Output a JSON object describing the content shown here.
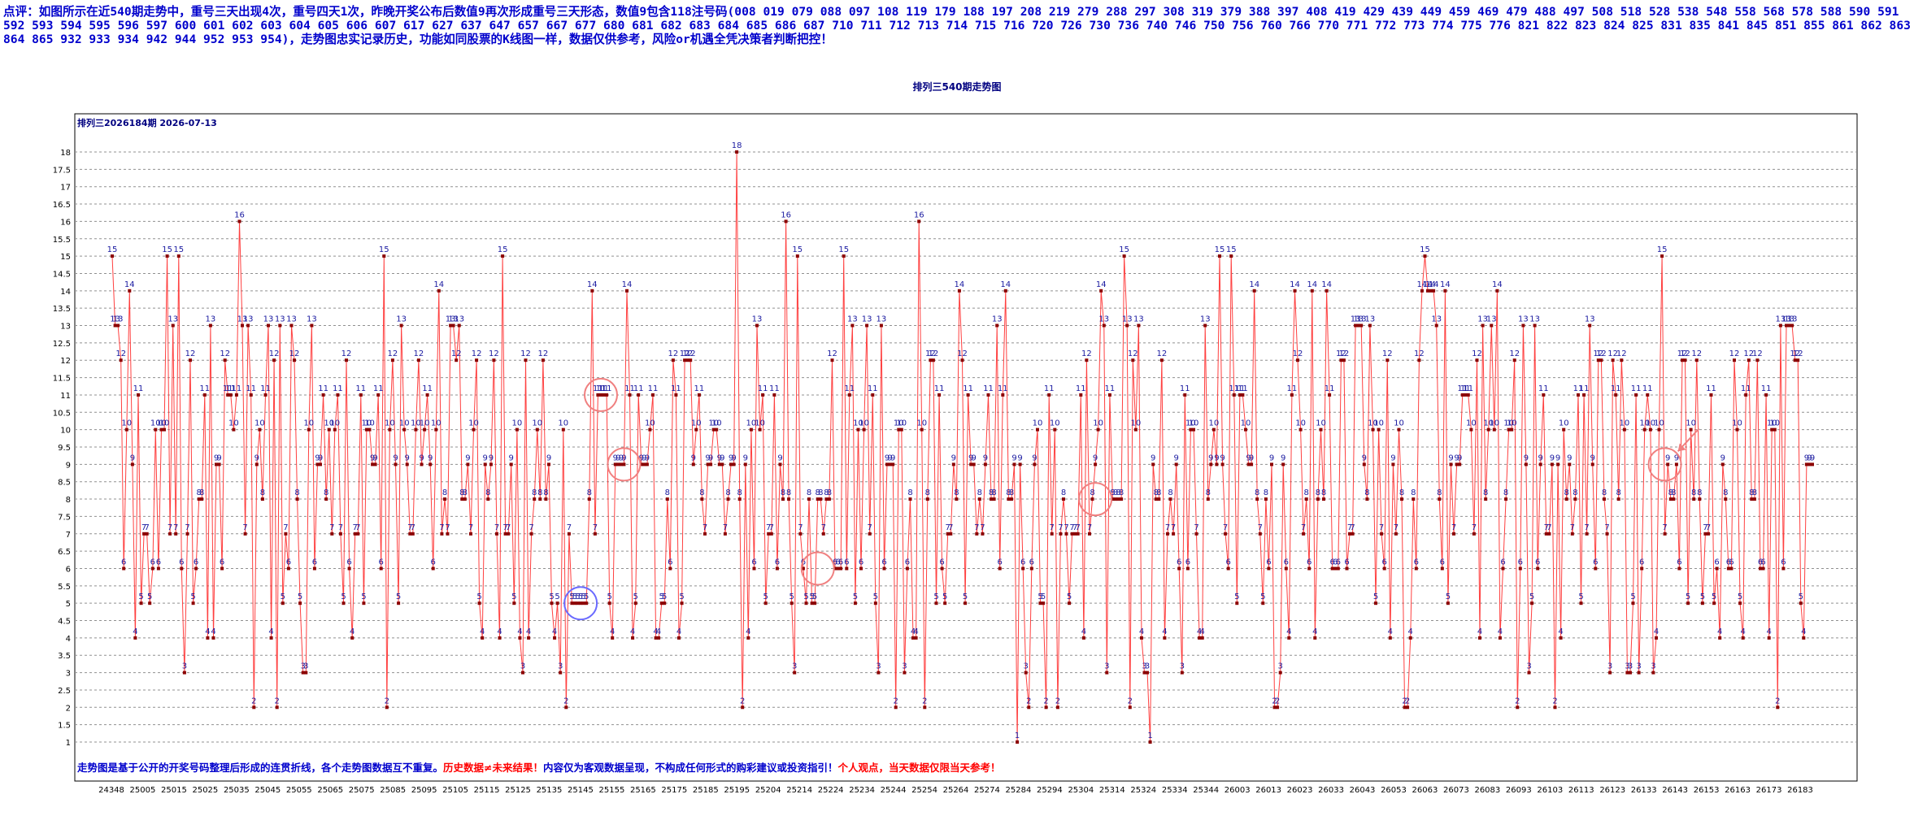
{
  "comment": "点评：如图所示在近540期走势中，重号三天出现4次，重号四天1次，昨晚开奖公布后数值9再次形成重号三天形态，数值9包含118注号码(008 019 079 088 097 108 119 179 188 197 208 219 279 288 297 308 319 379 388 397 408 419 429 439 449 459 469 479 488 497 508 518 528 538 548 558 568 578 588 590 591 592 593 594 595 596 597 600 601 602 603 604 605 606 607 617 627 637 647 657 667 677 680 681 682 683 684 685 686 687 710 711 712 713 714 715 716 720 726 730 736 740 746 750 756 760 766 770 771 772 773 774 775 776 821 822 823 824 825 831 835 841 845 851 855 861 862 863 864 865 932 933 934 942 944 952 953 954)，走势图忠实记录历史，功能如同股票的K线图一样，数据仅供参考，风险or机遇全凭决策者判断把控！",
  "title": "排列三540期走势图",
  "panel_label": "排列三2026184期 2026-07-13",
  "note": {
    "part1": "走势图是基于公开的开奖号码整理后形成的连贯折线，各个走势图数据互不重复。",
    "part2": "历史数据≠未来结果！",
    "part3": "内容仅为客观数据呈现，不构成任何形式的购彩建议或投资指引！",
    "part4": "个人观点，当天数据仅限当天参考！"
  },
  "colors": {
    "line": "#ff4040",
    "point": "#8b0000",
    "label": "#1a1aa0",
    "grid": "#909090",
    "circle_red": "#f08080",
    "circle_blue": "#6a6aff",
    "arrow": "#f08080"
  },
  "chart_data": {
    "type": "line",
    "ylim": [
      1,
      18
    ],
    "yticks": [
      "1",
      "1.5",
      "2",
      "2.5",
      "3",
      "3.5",
      "4",
      "4.5",
      "5",
      "5.5",
      "6",
      "6.5",
      "7",
      "7.5",
      "8",
      "8.5",
      "9",
      "9.5",
      "10",
      "10.5",
      "11",
      "11.5",
      "12",
      "12.5",
      "13",
      "13.5",
      "14",
      "14.5",
      "15",
      "15.5",
      "16",
      "16.5",
      "17",
      "17.5",
      "18"
    ],
    "grid": true,
    "x_tick_labels": [
      "24348",
      "25005",
      "25015",
      "25025",
      "25035",
      "25045",
      "25055",
      "25065",
      "25075",
      "25085",
      "25095",
      "25105",
      "25115",
      "25125",
      "25135",
      "25145",
      "25155",
      "25165",
      "25175",
      "25185",
      "25195",
      "25204",
      "25214",
      "25224",
      "25234",
      "25244",
      "25254",
      "25264",
      "25274",
      "25284",
      "25294",
      "25304",
      "25314",
      "25324",
      "25334",
      "25344",
      "26003",
      "26013",
      "26023",
      "26033",
      "26043",
      "26053",
      "26063",
      "26073",
      "26083",
      "26093",
      "26103",
      "26113",
      "26123",
      "26133",
      "26143",
      "26153",
      "26163",
      "26173",
      "26183"
    ],
    "values": [
      15,
      13,
      13,
      12,
      6,
      10,
      14,
      9,
      4,
      11,
      5,
      7,
      7,
      5,
      6,
      10,
      6,
      10,
      10,
      15,
      7,
      13,
      7,
      15,
      6,
      3,
      7,
      12,
      5,
      6,
      8,
      8,
      11,
      4,
      13,
      4,
      9,
      9,
      6,
      12,
      11,
      11,
      10,
      11,
      16,
      13,
      7,
      13,
      11,
      2,
      9,
      10,
      8,
      11,
      13,
      4,
      12,
      2,
      13,
      5,
      7,
      6,
      13,
      12,
      8,
      5,
      3,
      3,
      10,
      13,
      6,
      9,
      9,
      11,
      8,
      10,
      7,
      10,
      11,
      7,
      5,
      12,
      6,
      4,
      7,
      7,
      11,
      5,
      10,
      10,
      9,
      9,
      11,
      6,
      15,
      2,
      10,
      12,
      9,
      5,
      13,
      10,
      9,
      7,
      7,
      10,
      12,
      9,
      10,
      11,
      9,
      6,
      10,
      14,
      7,
      8,
      7,
      13,
      13,
      12,
      13,
      8,
      8,
      9,
      7,
      10,
      12,
      5,
      4,
      9,
      8,
      9,
      12,
      7,
      4,
      15,
      7,
      7,
      9,
      5,
      10,
      4,
      3,
      12,
      4,
      7,
      8,
      10,
      8,
      12,
      8,
      9,
      5,
      4,
      5,
      3,
      10,
      2,
      7,
      5,
      5,
      5,
      5,
      5,
      5,
      8,
      14,
      7,
      11,
      11,
      11,
      11,
      5,
      4,
      9,
      9,
      9,
      9,
      14,
      11,
      4,
      5,
      11,
      9,
      9,
      9,
      10,
      11,
      4,
      4,
      5,
      5,
      8,
      6,
      12,
      11,
      4,
      5,
      12,
      12,
      12,
      9,
      10,
      11,
      8,
      7,
      9,
      9,
      10,
      10,
      9,
      9,
      7,
      8,
      9,
      9,
      18,
      8,
      2,
      9,
      4,
      10,
      6,
      13,
      10,
      11,
      5,
      7,
      7,
      11,
      6,
      9,
      8,
      16,
      8,
      5,
      3,
      15,
      7,
      6,
      5,
      8,
      5,
      5,
      8,
      8,
      7,
      8,
      8,
      12,
      6,
      6,
      6,
      15,
      6,
      11,
      13,
      5,
      10,
      6,
      10,
      13,
      7,
      11,
      5,
      3,
      13,
      6,
      9,
      9,
      9,
      2,
      10,
      10,
      3,
      6,
      8,
      4,
      4,
      16,
      10,
      2,
      8,
      12,
      12,
      5,
      11,
      6,
      5,
      7,
      7,
      9,
      8,
      14,
      12,
      5,
      11,
      9,
      9,
      7,
      8,
      7,
      9,
      11,
      8,
      8,
      13,
      6,
      11,
      14,
      8,
      8,
      9,
      1,
      9,
      6,
      3,
      2,
      6,
      9,
      10,
      5,
      5,
      2,
      11,
      7,
      10,
      2,
      7,
      8,
      7,
      5,
      7,
      7,
      7,
      11,
      4,
      12,
      7,
      8,
      9,
      10,
      14,
      13,
      3,
      11,
      8,
      8,
      8,
      8,
      15,
      13,
      2,
      12,
      10,
      13,
      4,
      3,
      3,
      1,
      9,
      8,
      8,
      12,
      4,
      7,
      8,
      7,
      9,
      6,
      3,
      11,
      6,
      10,
      10,
      7,
      4,
      4,
      13,
      8,
      9,
      10,
      9,
      15,
      9,
      7,
      6,
      15,
      11,
      5,
      11,
      11,
      10,
      9,
      9,
      14,
      8,
      7,
      5,
      8,
      6,
      9,
      2,
      2,
      3,
      9,
      6,
      4,
      11,
      14,
      12,
      10,
      7,
      8,
      6,
      14,
      4,
      8,
      10,
      8,
      14,
      11,
      6,
      6,
      6,
      12,
      12,
      6,
      7,
      7,
      13,
      13,
      13,
      9,
      8,
      13,
      10,
      5,
      10,
      7,
      6,
      12,
      4,
      9,
      7,
      10,
      8,
      2,
      2,
      4,
      8,
      6,
      12,
      14,
      15,
      14,
      14,
      14,
      13,
      8,
      6,
      14,
      5,
      9,
      7,
      9,
      9,
      11,
      11,
      11,
      10,
      7,
      12,
      4,
      13,
      8,
      10,
      13,
      10,
      14,
      4,
      6,
      8,
      10,
      10,
      12,
      2,
      6,
      13,
      9,
      3,
      5,
      13,
      6,
      9,
      11,
      7,
      7,
      9,
      2,
      9,
      4,
      10,
      8,
      9,
      7,
      8,
      11,
      5,
      11,
      7,
      13,
      9,
      6,
      12,
      12,
      8,
      7,
      3,
      12,
      11,
      8,
      12,
      10,
      3,
      3,
      5,
      11,
      3,
      6,
      10,
      11,
      10,
      3,
      4,
      10,
      15,
      7,
      9,
      8,
      8,
      9,
      6,
      12,
      12,
      5,
      10,
      8,
      12,
      8,
      5,
      7,
      7,
      11,
      5,
      6,
      4,
      9,
      8,
      6,
      6,
      12,
      10,
      5,
      4,
      11,
      12,
      8,
      8,
      12,
      6,
      6,
      11,
      4,
      10,
      10,
      2,
      13,
      6,
      13,
      13,
      13,
      12,
      12,
      5,
      4,
      9,
      9,
      9
    ]
  }
}
